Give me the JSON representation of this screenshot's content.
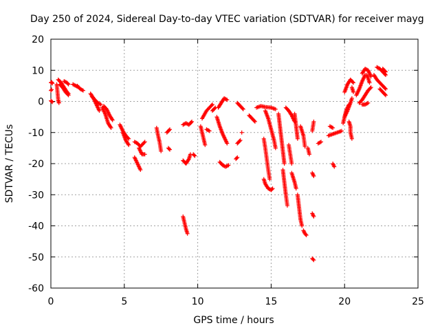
{
  "chart_data": {
    "type": "scatter",
    "title": "Day 250 of 2024, Sidereal Day-to-day VTEC variation (SDTVAR) for receiver mayg",
    "xlabel": "GPS time / hours",
    "ylabel": "SDTVAR / TECUs",
    "xlim": [
      0,
      25
    ],
    "ylim": [
      -60,
      20
    ],
    "x_ticks": [
      0,
      5,
      10,
      15,
      20,
      25
    ],
    "y_ticks": [
      -60,
      -50,
      -40,
      -30,
      -20,
      -10,
      0,
      10,
      20
    ],
    "x_tick_labels": [
      "0",
      "5",
      "10",
      "15",
      "20",
      "25"
    ],
    "y_tick_labels": [
      "-60",
      "-50",
      "-40",
      "-30",
      "-20",
      "-10",
      "0",
      "10",
      "20"
    ],
    "grid": true,
    "marker": "+",
    "color": "#ff0000",
    "segments": [
      [
        [
          0.0,
          6.0
        ],
        [
          0.05,
          6.2
        ],
        [
          0.1,
          5.8
        ]
      ],
      [
        [
          0.0,
          3.5
        ],
        [
          0.05,
          3.8
        ]
      ],
      [
        [
          0.0,
          0.2
        ],
        [
          0.05,
          0.0
        ],
        [
          0.1,
          -0.2
        ]
      ],
      [
        [
          0.4,
          5.5
        ],
        [
          0.45,
          3.0
        ],
        [
          0.5,
          0.5
        ],
        [
          0.55,
          -0.5
        ]
      ],
      [
        [
          0.5,
          7.0
        ],
        [
          0.7,
          6.0
        ],
        [
          0.9,
          4.5
        ],
        [
          1.1,
          3.0
        ],
        [
          1.2,
          2.5
        ]
      ],
      [
        [
          0.6,
          5.5
        ],
        [
          0.8,
          4.5
        ],
        [
          1.0,
          3.0
        ],
        [
          1.2,
          2.0
        ]
      ],
      [
        [
          0.9,
          6.5
        ],
        [
          1.1,
          6.0
        ],
        [
          1.2,
          5.5
        ]
      ],
      [
        [
          1.5,
          5.5
        ],
        [
          1.7,
          5.0
        ],
        [
          1.9,
          4.5
        ]
      ],
      [
        [
          1.8,
          5.0
        ],
        [
          2.0,
          4.0
        ],
        [
          2.2,
          3.5
        ]
      ],
      [
        [
          2.7,
          2.5
        ],
        [
          2.9,
          1.0
        ],
        [
          3.1,
          -1.0
        ],
        [
          3.3,
          -3.0
        ]
      ],
      [
        [
          2.8,
          1.5
        ],
        [
          3.0,
          0.5
        ],
        [
          3.2,
          -0.5
        ],
        [
          3.4,
          -1.0
        ]
      ],
      [
        [
          3.5,
          -2.0
        ],
        [
          3.7,
          -4.0
        ],
        [
          3.9,
          -7.0
        ],
        [
          4.1,
          -8.5
        ]
      ],
      [
        [
          3.6,
          -1.5
        ],
        [
          3.8,
          -2.5
        ],
        [
          4.0,
          -4.5
        ],
        [
          4.2,
          -6.0
        ]
      ],
      [
        [
          4.7,
          -7.5
        ],
        [
          4.9,
          -9.5
        ],
        [
          5.1,
          -11.0
        ],
        [
          5.3,
          -12.0
        ]
      ],
      [
        [
          4.9,
          -10.0
        ],
        [
          5.1,
          -12.5
        ],
        [
          5.3,
          -14.0
        ]
      ],
      [
        [
          5.7,
          -13.0
        ],
        [
          5.9,
          -13.5
        ],
        [
          6.1,
          -14.5
        ],
        [
          6.4,
          -13.0
        ]
      ],
      [
        [
          5.7,
          -18.0
        ],
        [
          5.9,
          -20.0
        ],
        [
          6.1,
          -22.0
        ]
      ],
      [
        [
          6.0,
          -15.0
        ],
        [
          6.2,
          -17.0
        ],
        [
          6.4,
          -17.0
        ]
      ],
      [
        [
          7.2,
          -8.5
        ],
        [
          7.3,
          -11.0
        ],
        [
          7.4,
          -13.0
        ],
        [
          7.5,
          -16.0
        ]
      ],
      [
        [
          7.9,
          -10.0
        ],
        [
          8.1,
          -9.0
        ]
      ],
      [
        [
          8.0,
          -15.0
        ],
        [
          8.1,
          -15.5
        ]
      ],
      [
        [
          9.0,
          -37.0
        ],
        [
          9.1,
          -39.0
        ],
        [
          9.2,
          -41.0
        ],
        [
          9.3,
          -42.5
        ]
      ],
      [
        [
          9.0,
          -19.0
        ],
        [
          9.2,
          -20.0
        ],
        [
          9.4,
          -18.5
        ],
        [
          9.5,
          -17.0
        ]
      ],
      [
        [
          9.7,
          -17.0
        ],
        [
          9.8,
          -17.5
        ]
      ],
      [
        [
          9.0,
          -7.5
        ],
        [
          9.2,
          -7.0
        ],
        [
          9.4,
          -7.5
        ],
        [
          9.6,
          -6.5
        ]
      ],
      [
        [
          10.2,
          -8.0
        ],
        [
          10.3,
          -10.0
        ],
        [
          10.4,
          -12.0
        ],
        [
          10.5,
          -14.0
        ]
      ],
      [
        [
          10.3,
          -5.5
        ],
        [
          10.6,
          -3.0
        ],
        [
          10.9,
          -1.5
        ],
        [
          11.0,
          -1.0
        ]
      ],
      [
        [
          10.6,
          -9.0
        ],
        [
          10.8,
          -9.5
        ]
      ],
      [
        [
          11.0,
          -3.0
        ],
        [
          11.2,
          -2.0
        ]
      ],
      [
        [
          11.3,
          -5.0
        ],
        [
          11.5,
          -8.0
        ],
        [
          11.7,
          -10.5
        ],
        [
          11.9,
          -12.5
        ],
        [
          12.0,
          -13.5
        ]
      ],
      [
        [
          11.5,
          -19.5
        ],
        [
          11.7,
          -20.5
        ],
        [
          11.9,
          -21.0
        ],
        [
          12.1,
          -20.5
        ]
      ],
      [
        [
          11.4,
          -2.0
        ],
        [
          11.6,
          -0.5
        ],
        [
          11.8,
          1.0
        ],
        [
          12.0,
          0.5
        ]
      ],
      [
        [
          12.6,
          -18.5
        ],
        [
          12.7,
          -18.0
        ]
      ],
      [
        [
          12.7,
          -13.5
        ],
        [
          12.9,
          -12.5
        ]
      ],
      [
        [
          13.0,
          -10.0
        ]
      ],
      [
        [
          12.7,
          -0.5
        ],
        [
          12.9,
          -1.5
        ],
        [
          13.1,
          -2.5
        ]
      ],
      [
        [
          13.5,
          -4.5
        ],
        [
          13.7,
          -5.5
        ],
        [
          13.9,
          -6.5
        ]
      ],
      [
        [
          14.0,
          -2.0
        ],
        [
          14.3,
          -1.5
        ],
        [
          14.6,
          -1.8
        ],
        [
          15.0,
          -2.0
        ],
        [
          15.3,
          -2.5
        ]
      ],
      [
        [
          14.5,
          -25.0
        ],
        [
          14.6,
          -26.5
        ],
        [
          14.8,
          -28.0
        ],
        [
          15.0,
          -28.5
        ],
        [
          15.1,
          -28.0
        ]
      ],
      [
        [
          14.5,
          -12.0
        ],
        [
          14.6,
          -15.0
        ],
        [
          14.7,
          -18.5
        ],
        [
          14.8,
          -22.0
        ],
        [
          14.9,
          -25.0
        ]
      ],
      [
        [
          14.6,
          -3.0
        ],
        [
          14.8,
          -5.5
        ],
        [
          15.0,
          -9.0
        ],
        [
          15.2,
          -12.5
        ],
        [
          15.3,
          -15.0
        ]
      ],
      [
        [
          15.5,
          -4.0
        ],
        [
          15.6,
          -8.0
        ],
        [
          15.7,
          -12.0
        ],
        [
          15.8,
          -16.0
        ],
        [
          15.9,
          -20.0
        ]
      ],
      [
        [
          15.8,
          -22.0
        ],
        [
          15.9,
          -26.0
        ],
        [
          16.0,
          -30.0
        ],
        [
          16.1,
          -33.5
        ]
      ],
      [
        [
          16.0,
          -2.0
        ],
        [
          16.2,
          -3.0
        ],
        [
          16.4,
          -4.5
        ],
        [
          16.6,
          -6.5
        ]
      ],
      [
        [
          16.2,
          -14.0
        ],
        [
          16.3,
          -17.0
        ],
        [
          16.4,
          -20.0
        ]
      ],
      [
        [
          16.4,
          -23.0
        ],
        [
          16.6,
          -26.0
        ],
        [
          16.7,
          -28.0
        ]
      ],
      [
        [
          16.6,
          -4.0
        ],
        [
          16.7,
          -8.0
        ],
        [
          16.8,
          -12.0
        ]
      ],
      [
        [
          16.8,
          -30.0
        ],
        [
          16.9,
          -34.0
        ],
        [
          17.0,
          -38.0
        ],
        [
          17.1,
          -40.0
        ]
      ],
      [
        [
          17.0,
          -8.0
        ],
        [
          17.2,
          -11.0
        ],
        [
          17.3,
          -14.5
        ]
      ],
      [
        [
          17.2,
          -41.5
        ],
        [
          17.3,
          -42.5
        ],
        [
          17.4,
          -43.0
        ]
      ],
      [
        [
          17.5,
          -15.0
        ],
        [
          17.6,
          -17.0
        ]
      ],
      [
        [
          17.8,
          -23.0
        ],
        [
          17.9,
          -24.0
        ]
      ],
      [
        [
          17.8,
          -36.0
        ],
        [
          17.9,
          -37.0
        ]
      ],
      [
        [
          17.8,
          -50.5
        ],
        [
          17.9,
          -51.0
        ]
      ],
      [
        [
          17.8,
          -9.5
        ],
        [
          17.9,
          -6.5
        ]
      ],
      [
        [
          18.2,
          -13.5
        ],
        [
          18.4,
          -13.0
        ]
      ],
      [
        [
          19.0,
          -8.0
        ],
        [
          19.2,
          -8.5
        ]
      ],
      [
        [
          18.9,
          -11.0
        ],
        [
          19.2,
          -10.5
        ],
        [
          19.5,
          -10.0
        ],
        [
          19.8,
          -9.5
        ]
      ],
      [
        [
          19.2,
          -20.0
        ],
        [
          19.3,
          -21.0
        ]
      ],
      [
        [
          19.9,
          -7.0
        ],
        [
          20.0,
          -5.0
        ],
        [
          20.2,
          -3.0
        ],
        [
          20.4,
          -0.5
        ],
        [
          20.5,
          1.0
        ]
      ],
      [
        [
          20.0,
          -5.0
        ],
        [
          20.1,
          -3.0
        ],
        [
          20.3,
          -1.0
        ]
      ],
      [
        [
          20.3,
          -6.5
        ],
        [
          20.4,
          -8.0
        ],
        [
          20.4,
          -10.0
        ],
        [
          20.5,
          -12.0
        ]
      ],
      [
        [
          20.0,
          3.0
        ],
        [
          20.2,
          5.5
        ],
        [
          20.4,
          7.0
        ],
        [
          20.6,
          6.0
        ]
      ],
      [
        [
          20.5,
          4.5
        ],
        [
          20.6,
          3.0
        ]
      ],
      [
        [
          20.8,
          2.0
        ],
        [
          21.0,
          4.0
        ],
        [
          21.2,
          6.5
        ],
        [
          21.4,
          8.5
        ]
      ],
      [
        [
          21.0,
          -0.5
        ],
        [
          21.2,
          0.5
        ],
        [
          21.4,
          2.0
        ],
        [
          21.6,
          3.5
        ],
        [
          21.8,
          4.5
        ]
      ],
      [
        [
          21.2,
          9.0
        ],
        [
          21.4,
          10.5
        ],
        [
          21.6,
          10.0
        ],
        [
          21.8,
          8.0
        ]
      ],
      [
        [
          21.5,
          8.5
        ],
        [
          21.6,
          7.5
        ],
        [
          21.7,
          6.0
        ]
      ],
      [
        [
          21.2,
          -1.0
        ],
        [
          21.4,
          -1.0
        ],
        [
          21.6,
          -0.5
        ]
      ],
      [
        [
          22.0,
          8.5
        ],
        [
          22.2,
          7.0
        ],
        [
          22.4,
          6.0
        ],
        [
          22.6,
          5.0
        ],
        [
          22.8,
          4.0
        ]
      ],
      [
        [
          22.2,
          11.0
        ],
        [
          22.4,
          10.5
        ],
        [
          22.6,
          9.5
        ],
        [
          22.8,
          8.5
        ]
      ],
      [
        [
          22.4,
          4.0
        ],
        [
          22.6,
          3.0
        ],
        [
          22.8,
          2.0
        ]
      ],
      [
        [
          22.6,
          10.5
        ],
        [
          22.8,
          9.5
        ]
      ]
    ]
  }
}
